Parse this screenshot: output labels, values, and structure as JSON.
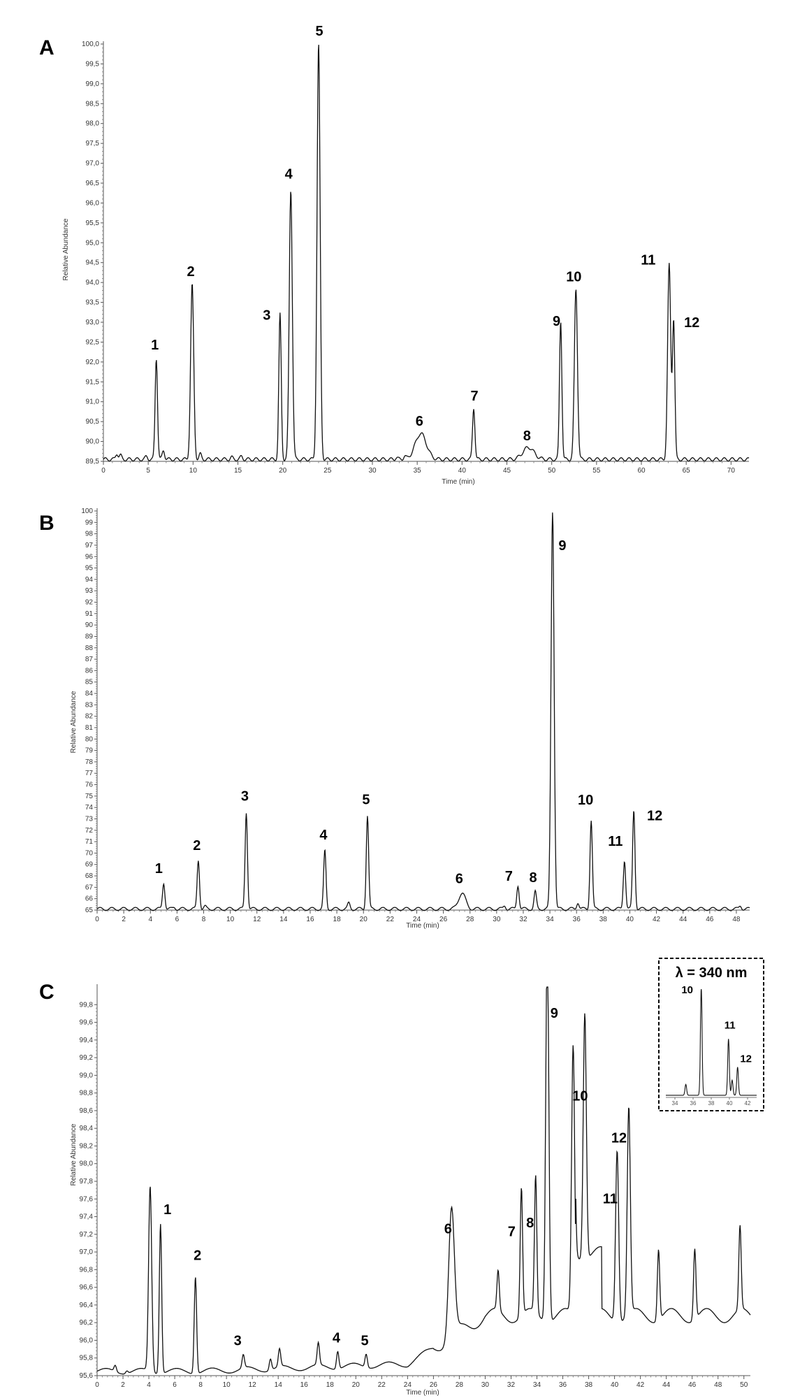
{
  "figure": {
    "line_color": "#111111",
    "inset_border_color": "#000000"
  },
  "chart_data": [
    {
      "panel": "A",
      "type": "line",
      "xlabel": "Time (min)",
      "ylabel": "Relative Abundance",
      "xlim": [
        0,
        72
      ],
      "ylim": [
        89.5,
        100.0
      ],
      "x_ticks": [
        0,
        5,
        10,
        15,
        20,
        25,
        30,
        35,
        40,
        45,
        50,
        55,
        60,
        65,
        70
      ],
      "y_ticks": [
        "89,5",
        "90,0",
        "90,5",
        "91,0",
        "91,5",
        "92,0",
        "92,5",
        "93,0",
        "93,5",
        "94,0",
        "94,5",
        "95,0",
        "95,5",
        "96,0",
        "96,5",
        "97,0",
        "97,5",
        "98,0",
        "98,5",
        "99,0",
        "99,5",
        "100,0"
      ],
      "baseline": 89.55,
      "peaks": [
        {
          "label": "1",
          "x": 5.9,
          "y": 92.1
        },
        {
          "label": "2",
          "x": 9.9,
          "y": 93.95
        },
        {
          "label": "3",
          "x": 19.7,
          "y": 93.2
        },
        {
          "label": "4",
          "x": 20.9,
          "y": 96.35
        },
        {
          "label": "5",
          "x": 24.0,
          "y": 100.0
        },
        {
          "label": "6",
          "x": 35.4,
          "y": 90.2
        },
        {
          "label": "7",
          "x": 41.3,
          "y": 90.85
        },
        {
          "label": "8",
          "x": 47.4,
          "y": 89.85
        },
        {
          "label": "9",
          "x": 51.0,
          "y": 93.05
        },
        {
          "label": "10",
          "x": 52.7,
          "y": 93.85
        },
        {
          "label": "11",
          "x": 63.1,
          "y": 94.45
        },
        {
          "label": "12",
          "x": 63.6,
          "y": 93.05
        }
      ],
      "minor_peaks": [
        {
          "x": 1.5,
          "y": 89.7
        },
        {
          "x": 1.9,
          "y": 89.65
        },
        {
          "x": 4.8,
          "y": 89.62
        },
        {
          "x": 6.7,
          "y": 89.78
        },
        {
          "x": 10.8,
          "y": 89.68
        },
        {
          "x": 14.3,
          "y": 89.6
        },
        {
          "x": 15.4,
          "y": 89.62
        },
        {
          "x": 32.7,
          "y": 89.6
        },
        {
          "x": 33.6,
          "y": 89.63
        }
      ]
    },
    {
      "panel": "B",
      "type": "line",
      "xlabel": "Time (min)",
      "ylabel": "Relative Abundance",
      "xlim": [
        0,
        49
      ],
      "ylim": [
        65,
        100
      ],
      "x_ticks": [
        0,
        2,
        4,
        6,
        8,
        10,
        12,
        14,
        16,
        18,
        20,
        22,
        24,
        26,
        28,
        30,
        32,
        34,
        36,
        38,
        40,
        42,
        44,
        46,
        48
      ],
      "y_ticks": [
        "65",
        "66",
        "67",
        "68",
        "69",
        "70",
        "71",
        "72",
        "73",
        "74",
        "75",
        "76",
        "77",
        "78",
        "79",
        "80",
        "81",
        "82",
        "83",
        "84",
        "85",
        "86",
        "87",
        "88",
        "89",
        "90",
        "91",
        "92",
        "93",
        "94",
        "95",
        "96",
        "97",
        "98",
        "99",
        "100"
      ],
      "baseline": 65.1,
      "peaks": [
        {
          "label": "1",
          "x": 5.0,
          "y": 67.4
        },
        {
          "label": "2",
          "x": 7.6,
          "y": 69.4
        },
        {
          "label": "3",
          "x": 11.2,
          "y": 73.6
        },
        {
          "label": "4",
          "x": 17.1,
          "y": 70.2
        },
        {
          "label": "5",
          "x": 20.3,
          "y": 73.3
        },
        {
          "label": "6",
          "x": 27.4,
          "y": 66.5
        },
        {
          "label": "7",
          "x": 31.6,
          "y": 67.2
        },
        {
          "label": "8",
          "x": 32.9,
          "y": 66.6
        },
        {
          "label": "9",
          "x": 34.2,
          "y": 100
        },
        {
          "label": "10",
          "x": 37.1,
          "y": 72.9
        },
        {
          "label": "11",
          "x": 39.6,
          "y": 69.4
        },
        {
          "label": "12",
          "x": 40.3,
          "y": 73.8
        }
      ],
      "minor_peaks": [
        {
          "x": 5.8,
          "y": 65.25
        },
        {
          "x": 8.1,
          "y": 65.3
        },
        {
          "x": 18.9,
          "y": 65.6
        },
        {
          "x": 30.6,
          "y": 65.4
        },
        {
          "x": 36.1,
          "y": 65.7
        },
        {
          "x": 48.3,
          "y": 65.4
        }
      ]
    },
    {
      "panel": "C",
      "type": "line",
      "xlabel": "Time (min)",
      "ylabel": "Relative Abundance",
      "xlim": [
        0,
        50.5
      ],
      "ylim": [
        95.6,
        100
      ],
      "x_ticks": [
        0,
        2,
        4,
        6,
        8,
        10,
        12,
        14,
        16,
        18,
        20,
        22,
        24,
        26,
        28,
        30,
        32,
        34,
        36,
        38,
        40,
        42,
        44,
        46,
        48,
        50
      ],
      "y_ticks": [
        "95,6",
        "95,8",
        "96,0",
        "96,2",
        "96,4",
        "96,6",
        "96,8",
        "97,0",
        "97,2",
        "97,4",
        "97,6",
        "97,8",
        "98,0",
        "98,2",
        "98,4",
        "98,6",
        "98,8",
        "99,0",
        "99,2",
        "99,4",
        "99,6",
        "99,8"
      ],
      "baseline": 95.65,
      "peaks": [
        {
          "label": "",
          "x": 4.1,
          "y": 97.75
        },
        {
          "label": "1",
          "x": 4.9,
          "y": 97.35
        },
        {
          "label": "2",
          "x": 7.6,
          "y": 96.75
        },
        {
          "label": "3",
          "x": 11.3,
          "y": 95.8
        },
        {
          "label": "4",
          "x": 18.6,
          "y": 95.85
        },
        {
          "label": "5",
          "x": 20.8,
          "y": 95.8
        },
        {
          "label": "6",
          "x": 27.4,
          "y": 97.1
        },
        {
          "label": "7",
          "x": 32.8,
          "y": 97.1
        },
        {
          "label": "8",
          "x": 33.9,
          "y": 97.2
        },
        {
          "label": "9",
          "x": 34.8,
          "y": 100
        },
        {
          "label": "10",
          "x": 36.8,
          "y": 98.7
        },
        {
          "label": "11",
          "x": 40.2,
          "y": 97.6
        },
        {
          "label": "12",
          "x": 41.1,
          "y": 98.0
        }
      ],
      "minor_peaks": [
        {
          "x": 1.4,
          "y": 95.72
        },
        {
          "x": 2.3,
          "y": 95.68
        },
        {
          "x": 13.4,
          "y": 95.78
        },
        {
          "x": 14.1,
          "y": 95.85
        },
        {
          "x": 17.1,
          "y": 95.9
        },
        {
          "x": 31.0,
          "y": 96.1
        },
        {
          "x": 37.7,
          "y": 98.45
        },
        {
          "x": 43.4,
          "y": 96.45
        },
        {
          "x": 46.2,
          "y": 96.45
        },
        {
          "x": 49.7,
          "y": 96.6
        }
      ],
      "inset": {
        "title": "λ = 340 nm",
        "x_ticks": [
          "34",
          "36",
          "38",
          "40",
          "42"
        ],
        "peaks": [
          {
            "label": "10",
            "x": 36.9,
            "y": 1.0
          },
          {
            "label": "11",
            "x": 39.9,
            "y": 0.52
          },
          {
            "label": "12",
            "x": 40.9,
            "y": 0.26
          }
        ],
        "minor_peaks": [
          {
            "x": 35.2,
            "y": 0.1
          },
          {
            "x": 40.3,
            "y": 0.14
          }
        ]
      }
    }
  ]
}
